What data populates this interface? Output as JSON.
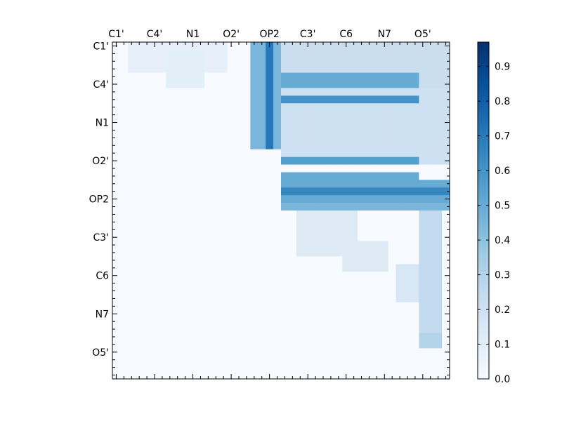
{
  "chart_data": {
    "type": "heatmap",
    "title": "",
    "xlabel": "",
    "ylabel": "",
    "x_tick_labels": [
      "C1'",
      "C4'",
      "N1",
      "O2'",
      "OP2",
      "C3'",
      "C6",
      "N7",
      "O5'"
    ],
    "y_tick_labels": [
      "C1'",
      "C4'",
      "N1",
      "O2'",
      "OP2",
      "C3'",
      "C6",
      "N7",
      "O5'"
    ],
    "n_rows": 44,
    "n_cols": 44,
    "colormap": "Blues",
    "colorbar": {
      "min": 0.0,
      "max": 0.97,
      "ticks": [
        0.0,
        0.1,
        0.2,
        0.3,
        0.4,
        0.5,
        0.6,
        0.7,
        0.8,
        0.9
      ],
      "tick_labels": [
        "0.0",
        "0.1",
        "0.2",
        "0.3",
        "0.4",
        "0.5",
        "0.6",
        "0.7",
        "0.8",
        "0.9"
      ]
    },
    "regions": [
      {
        "r": [
          0,
          4
        ],
        "c": [
          2,
          15
        ],
        "v": 0.08
      },
      {
        "r": [
          1,
          6
        ],
        "c": [
          7,
          12
        ],
        "v": 0.1
      },
      {
        "r": [
          0,
          14
        ],
        "c": [
          18,
          22
        ],
        "v": 0.45
      },
      {
        "r": [
          0,
          14
        ],
        "c": [
          20,
          21
        ],
        "v": 0.7
      },
      {
        "r": [
          0,
          6
        ],
        "c": [
          22,
          44
        ],
        "v": 0.22
      },
      {
        "r": [
          4,
          6
        ],
        "c": [
          22,
          40
        ],
        "v": 0.5
      },
      {
        "r": [
          6,
          16
        ],
        "c": [
          22,
          44
        ],
        "v": 0.2
      },
      {
        "r": [
          7,
          8
        ],
        "c": [
          22,
          40
        ],
        "v": 0.6
      },
      {
        "r": [
          15,
          16
        ],
        "c": [
          22,
          40
        ],
        "v": 0.55
      },
      {
        "r": [
          17,
          18
        ],
        "c": [
          22,
          40
        ],
        "v": 0.5
      },
      {
        "r": [
          18,
          22
        ],
        "c": [
          22,
          44
        ],
        "v": 0.5
      },
      {
        "r": [
          19,
          20
        ],
        "c": [
          22,
          44
        ],
        "v": 0.65
      },
      {
        "r": [
          21,
          22
        ],
        "c": [
          22,
          44
        ],
        "v": 0.45
      },
      {
        "r": [
          22,
          28
        ],
        "c": [
          24,
          32
        ],
        "v": 0.12
      },
      {
        "r": [
          22,
          38
        ],
        "c": [
          40,
          43
        ],
        "v": 0.25
      },
      {
        "r": [
          26,
          30
        ],
        "c": [
          30,
          36
        ],
        "v": 0.12
      },
      {
        "r": [
          29,
          34
        ],
        "c": [
          37,
          40
        ],
        "v": 0.15
      },
      {
        "r": [
          38,
          40
        ],
        "c": [
          40,
          43
        ],
        "v": 0.3
      }
    ]
  }
}
